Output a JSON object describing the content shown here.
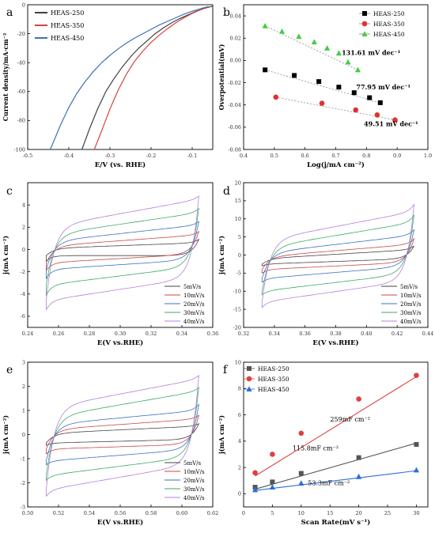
{
  "chart_data": [
    {
      "id": "a",
      "type": "line",
      "panel_label": "a",
      "xlabel": "E/V (vs. RHE)",
      "ylabel": "Current density/mA·cm⁻²",
      "xlim": [
        -0.5,
        -0.05
      ],
      "ylim": [
        -100,
        0
      ],
      "xticks": [
        -0.5,
        -0.4,
        -0.3,
        -0.2,
        -0.1
      ],
      "xtick_labels": [
        "-0.5",
        "-0.4",
        "-0.3",
        "-0.2",
        "-0.1"
      ],
      "yticks": [
        -100,
        -80,
        -60,
        -40,
        -20,
        0
      ],
      "ytick_labels": [
        "-100",
        "-80",
        "-60",
        "-40",
        "-20",
        "0"
      ],
      "legend_position": "top-left",
      "series": [
        {
          "name": "HEAS-250",
          "color": "#404040",
          "x": [
            -0.368,
            -0.35,
            -0.33,
            -0.31,
            -0.29,
            -0.27,
            -0.25,
            -0.23,
            -0.21,
            -0.19,
            -0.17,
            -0.15,
            -0.13,
            -0.11,
            -0.09,
            -0.07,
            -0.05
          ],
          "y": [
            -100,
            -86,
            -72,
            -60,
            -51,
            -43,
            -36,
            -30,
            -25,
            -20,
            -16,
            -12.5,
            -9.5,
            -7,
            -4.5,
            -2.5,
            -1
          ]
        },
        {
          "name": "HEAS-350",
          "color": "#d94040",
          "x": [
            -0.338,
            -0.32,
            -0.3,
            -0.28,
            -0.26,
            -0.24,
            -0.22,
            -0.2,
            -0.18,
            -0.16,
            -0.14,
            -0.12,
            -0.1,
            -0.08,
            -0.06
          ],
          "y": [
            -100,
            -87,
            -72,
            -59,
            -48,
            -39,
            -32,
            -26,
            -21,
            -16.5,
            -12.5,
            -9,
            -6,
            -3.5,
            -1.5
          ]
        },
        {
          "name": "HEAS-450",
          "color": "#3f6fb5",
          "x": [
            -0.445,
            -0.42,
            -0.4,
            -0.38,
            -0.36,
            -0.34,
            -0.32,
            -0.3,
            -0.28,
            -0.26,
            -0.24,
            -0.22,
            -0.2,
            -0.18,
            -0.16,
            -0.14,
            -0.12,
            -0.1,
            -0.08,
            -0.06
          ],
          "y": [
            -100,
            -83,
            -71,
            -61,
            -53,
            -46,
            -40,
            -35,
            -30.5,
            -26.5,
            -23,
            -20,
            -17,
            -14,
            -11.5,
            -9,
            -6.5,
            -4.5,
            -2.8,
            -1.2
          ]
        }
      ]
    },
    {
      "id": "b",
      "type": "scatter",
      "panel_label": "b",
      "xlabel": "Log(j/mA cm⁻²)",
      "ylabel": "Overpotential(mV)",
      "xlim": [
        0.4,
        1.0
      ],
      "ylim": [
        -0.08,
        0.05
      ],
      "xticks": [
        0.4,
        0.5,
        0.6,
        0.7,
        0.8,
        0.9,
        1.0
      ],
      "xtick_labels": [
        "0.4",
        "0.5",
        "0.6",
        "0.7",
        "0.8",
        "0.9",
        "1.0"
      ],
      "yticks": [
        -0.08,
        -0.06,
        -0.04,
        -0.02,
        0.0,
        0.02,
        0.04
      ],
      "ytick_labels": [
        "-0.08",
        "-0.06",
        "-0.04",
        "-0.02",
        "0.00",
        "0.02",
        "0.04"
      ],
      "legend_position": "top-right",
      "series": [
        {
          "name": "HEAS-250",
          "color": "#000000",
          "marker": "square",
          "x": [
            0.47,
            0.565,
            0.645,
            0.71,
            0.76,
            0.81,
            0.845
          ],
          "y": [
            -0.0085,
            -0.0135,
            -0.019,
            -0.024,
            -0.029,
            -0.0335,
            -0.038
          ],
          "fit": [
            [
              0.47,
              -0.0085
            ],
            [
              0.85,
              -0.0385
            ]
          ]
        },
        {
          "name": "HEAS-350",
          "color": "#e03030",
          "marker": "circle",
          "x": [
            0.505,
            0.655,
            0.765,
            0.835,
            0.893
          ],
          "y": [
            -0.033,
            -0.0385,
            -0.0445,
            -0.049,
            -0.0535
          ],
          "fit": [
            [
              0.505,
              -0.033
            ],
            [
              0.893,
              -0.0535
            ]
          ]
        },
        {
          "name": "HEAS-450",
          "color": "#44cc44",
          "marker": "triangle",
          "x": [
            0.47,
            0.525,
            0.58,
            0.63,
            0.672,
            0.71,
            0.74,
            0.772
          ],
          "y": [
            0.031,
            0.026,
            0.0215,
            0.0165,
            0.011,
            0.0065,
            -0.0015,
            -0.0085
          ],
          "fit": [
            [
              0.47,
              0.031
            ],
            [
              0.775,
              -0.009
            ]
          ]
        }
      ],
      "annotations": [
        {
          "text": "131.61 mV dec⁻¹",
          "x": 0.815,
          "y": 0.005
        },
        {
          "text": "77.95 mV dec⁻¹",
          "x": 0.855,
          "y": -0.026
        },
        {
          "text": "49.51 mV dec⁻¹",
          "x": 0.88,
          "y": -0.059
        }
      ]
    },
    {
      "id": "c",
      "type": "line",
      "panel_label": "c",
      "xlabel": "E(V vs.RHE)",
      "ylabel": "j(mA cm⁻²)",
      "xlim": [
        0.24,
        0.36
      ],
      "ylim": [
        -7,
        6
      ],
      "xticks": [
        0.24,
        0.26,
        0.28,
        0.3,
        0.32,
        0.34,
        0.36
      ],
      "xtick_labels": [
        "0.24",
        "0.26",
        "0.28",
        "0.30",
        "0.32",
        "0.34",
        "0.36"
      ],
      "yticks": [
        -6,
        -4,
        -2,
        0,
        2,
        4
      ],
      "ytick_labels": [
        "-6",
        "-4",
        "-2",
        "0",
        "2",
        "4"
      ],
      "legend_position": "bottom-right",
      "cv": {
        "emin": 0.252,
        "emax": 0.351
      },
      "series": [
        {
          "name": "5mV/s",
          "color": "#444444",
          "upper": [
            0.1,
            0.6
          ],
          "lower": [
            -0.55,
            -0.55
          ],
          "peak_top": 0.9,
          "peak_bottom": -1.05
        },
        {
          "name": "10mV/s",
          "color": "#cc4444",
          "upper": [
            0.3,
            1.3
          ],
          "lower": [
            -1.2,
            -0.4
          ],
          "peak_top": 1.6,
          "peak_bottom": -1.9
        },
        {
          "name": "20mV/s",
          "color": "#3a6fc4",
          "upper": [
            0.7,
            2.2
          ],
          "lower": [
            -1.8,
            -0.9
          ],
          "peak_top": 2.5,
          "peak_bottom": -2.6
        },
        {
          "name": "30mV/s",
          "color": "#3daa66",
          "upper": [
            1.3,
            3.3
          ],
          "lower": [
            -3.2,
            -1.5
          ],
          "peak_top": 3.7,
          "peak_bottom": -4.1
        },
        {
          "name": "40mV/s",
          "color": "#b57fd8",
          "upper": [
            2.0,
            4.5
          ],
          "lower": [
            -4.6,
            -2.5
          ],
          "peak_top": 4.8,
          "peak_bottom": -5.4
        }
      ]
    },
    {
      "id": "d",
      "type": "line",
      "panel_label": "d",
      "xlabel": "E(V vs.RHE)",
      "ylabel": "j(mA cm⁻²)",
      "xlim": [
        0.32,
        0.44
      ],
      "ylim": [
        -20,
        20
      ],
      "xticks": [
        0.32,
        0.34,
        0.36,
        0.38,
        0.4,
        0.42,
        0.44
      ],
      "xtick_labels": [
        "0.32",
        "0.34",
        "0.36",
        "0.38",
        "0.40",
        "0.42",
        "0.44"
      ],
      "yticks": [
        -20,
        -15,
        -10,
        -5,
        0,
        5,
        10,
        15,
        20
      ],
      "ytick_labels": [
        "-20",
        "-15",
        "-10",
        "-5",
        "0",
        "5",
        "10",
        "15",
        "20"
      ],
      "legend_position": "bottom-right",
      "cv": {
        "emin": 0.332,
        "emax": 0.431
      },
      "series": [
        {
          "name": "5mV/s",
          "color": "#444444",
          "upper": [
            -1.0,
            1.5
          ],
          "lower": [
            -2.5,
            -1.0
          ],
          "peak_top": 2.5,
          "peak_bottom": -3.0
        },
        {
          "name": "10mV/s",
          "color": "#cc4444",
          "upper": [
            -0.5,
            3.0
          ],
          "lower": [
            -4.0,
            -2.0
          ],
          "peak_top": 4.5,
          "peak_bottom": -5.0
        },
        {
          "name": "20mV/s",
          "color": "#3a6fc4",
          "upper": [
            0.5,
            5.5
          ],
          "lower": [
            -6.5,
            -3.0
          ],
          "peak_top": 7.0,
          "peak_bottom": -7.5
        },
        {
          "name": "30mV/s",
          "color": "#3daa66",
          "upper": [
            2.0,
            9.0
          ],
          "lower": [
            -10.0,
            -5.0
          ],
          "peak_top": 11.0,
          "peak_bottom": -11.0
        },
        {
          "name": "40mV/s",
          "color": "#b57fd8",
          "upper": [
            4.0,
            12.0
          ],
          "lower": [
            -13.0,
            -7.0
          ],
          "peak_top": 14.0,
          "peak_bottom": -14.5
        }
      ]
    },
    {
      "id": "e",
      "type": "line",
      "panel_label": "e",
      "xlabel": "E(V vs.RHE)",
      "ylabel": "j(mA cm⁻²)",
      "xlim": [
        0.5,
        0.62
      ],
      "ylim": [
        -3,
        3
      ],
      "xticks": [
        0.5,
        0.52,
        0.54,
        0.56,
        0.58,
        0.6,
        0.62
      ],
      "xtick_labels": [
        "0.50",
        "0.52",
        "0.54",
        "0.56",
        "0.58",
        "0.60",
        "0.62"
      ],
      "yticks": [
        -3,
        -2,
        -1,
        0,
        1,
        2,
        3
      ],
      "ytick_labels": [
        "-3",
        "-2",
        "-1",
        "0",
        "1",
        "2",
        "3"
      ],
      "legend_position": "bottom-right",
      "cv": {
        "emin": 0.512,
        "emax": 0.611
      },
      "series": [
        {
          "name": "5mV/s",
          "color": "#444444",
          "upper": [
            0.05,
            0.35
          ],
          "lower": [
            -0.35,
            -0.2
          ],
          "peak_top": 0.45,
          "peak_bottom": -0.45
        },
        {
          "name": "10mV/s",
          "color": "#cc4444",
          "upper": [
            0.2,
            0.65
          ],
          "lower": [
            -0.6,
            -0.4
          ],
          "peak_top": 0.8,
          "peak_bottom": -0.8
        },
        {
          "name": "20mV/s",
          "color": "#3a6fc4",
          "upper": [
            0.4,
            1.0
          ],
          "lower": [
            -1.1,
            -0.6
          ],
          "peak_top": 1.25,
          "peak_bottom": -1.25
        },
        {
          "name": "30mV/s",
          "color": "#3daa66",
          "upper": [
            0.7,
            1.8
          ],
          "lower": [
            -1.7,
            -0.9
          ],
          "peak_top": 1.95,
          "peak_bottom": -1.9
        },
        {
          "name": "40mV/s",
          "color": "#b57fd8",
          "upper": [
            1.1,
            2.3
          ],
          "lower": [
            -2.3,
            -1.2
          ],
          "peak_top": 2.45,
          "peak_bottom": -2.55
        }
      ]
    },
    {
      "id": "f",
      "type": "scatter",
      "panel_label": "f",
      "xlabel": "Scan Rate(mV s⁻¹)",
      "ylabel": "j(mA cm⁻²)",
      "xlim": [
        0,
        32
      ],
      "ylim": [
        -1,
        10
      ],
      "xticks": [
        0,
        5,
        10,
        15,
        20,
        25,
        30
      ],
      "xtick_labels": [
        "0",
        "5",
        "10",
        "15",
        "20",
        "25",
        "30"
      ],
      "yticks": [
        0,
        2,
        4,
        6,
        8,
        10
      ],
      "ytick_labels": [
        "0",
        "2",
        "4",
        "6",
        "8",
        "10"
      ],
      "legend_position": "top-left",
      "series": [
        {
          "name": "HEAS-250",
          "color": "#555555",
          "marker": "square",
          "x": [
            2,
            5,
            10,
            20,
            30
          ],
          "y": [
            0.5,
            0.9,
            1.55,
            2.75,
            3.75
          ],
          "fit": [
            [
              2,
              0.35
            ],
            [
              30,
              3.85
            ]
          ]
        },
        {
          "name": "HEAS-350",
          "color": "#e04040",
          "marker": "circle",
          "x": [
            2,
            5,
            10,
            20,
            30
          ],
          "y": [
            1.6,
            3.0,
            4.6,
            7.2,
            9.0
          ],
          "fit": [
            [
              2,
              1.35
            ],
            [
              30,
              8.9
            ]
          ]
        },
        {
          "name": "HEAS-450",
          "color": "#2b6ed6",
          "marker": "triangle",
          "x": [
            2,
            5,
            10,
            20,
            30
          ],
          "y": [
            0.3,
            0.5,
            0.8,
            1.3,
            1.8
          ],
          "fit": [
            [
              2,
              0.25
            ],
            [
              30,
              1.75
            ]
          ]
        }
      ],
      "annotations": [
        {
          "text": "259mF cm⁻²",
          "x": 18.5,
          "y": 5.5
        },
        {
          "text": "115.8mF cm⁻²",
          "x": 12.5,
          "y": 3.3
        },
        {
          "text": "53.3mF cm⁻²",
          "x": 14.8,
          "y": 0.65
        }
      ]
    }
  ]
}
